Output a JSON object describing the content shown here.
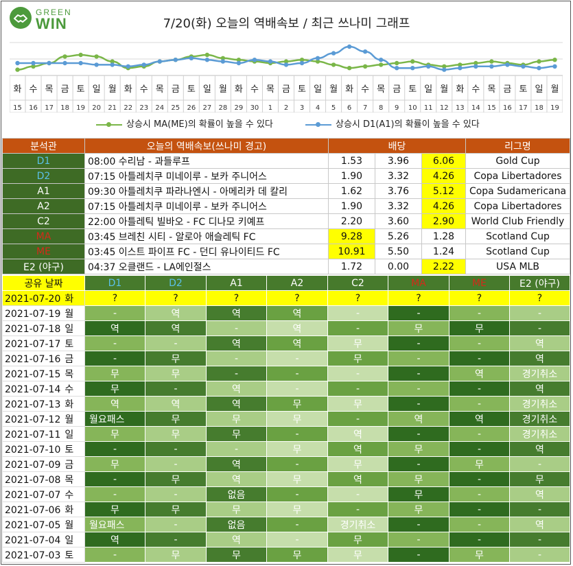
{
  "logo": {
    "line1": "GREEN",
    "line2": "WIN"
  },
  "title": "7/20(화) 오늘의 역배속보 / 최근 쓰나미 그래프",
  "colors": {
    "green_series": "#7ab648",
    "blue_series": "#5b9bd5",
    "header_orange": "#c4520f",
    "label_green": "#3e6b25",
    "highlight": "#ffff00"
  },
  "chart_data": {
    "type": "line",
    "x_days": [
      "화",
      "수",
      "목",
      "금",
      "토",
      "일",
      "월",
      "화",
      "수",
      "목",
      "금",
      "토",
      "일",
      "월",
      "화",
      "수",
      "목",
      "금",
      "토",
      "일",
      "월",
      "화",
      "수",
      "목",
      "금",
      "토",
      "일",
      "월",
      "화",
      "수",
      "목",
      "금",
      "토",
      "일",
      "월"
    ],
    "x_dates": [
      "15",
      "16",
      "17",
      "18",
      "19",
      "20",
      "21",
      "22",
      "23",
      "24",
      "25",
      "26",
      "27",
      "28",
      "29",
      "30",
      "1",
      "2",
      "3",
      "4",
      "5",
      "6",
      "7",
      "8",
      "9",
      "10",
      "11",
      "12",
      "13",
      "14",
      "15",
      "16",
      "17",
      "18",
      "19"
    ],
    "series": [
      {
        "name": "상승시  MA(ME)의 확률이 높을 수 있다",
        "color": "#7ab648",
        "values": [
          -8,
          -4,
          0,
          8,
          10,
          8,
          2,
          -6,
          -4,
          2,
          4,
          8,
          10,
          6,
          4,
          2,
          0,
          2,
          4,
          2,
          -2,
          -6,
          -4,
          -2,
          0,
          2,
          -2,
          -4,
          -2,
          0,
          2,
          0,
          -2,
          2,
          4
        ]
      },
      {
        "name": "상승시  D1(A1)의 확률이 높을 수 있다",
        "color": "#5b9bd5",
        "values": [
          0,
          0,
          0,
          0,
          0,
          -2,
          -2,
          -4,
          -2,
          2,
          4,
          6,
          4,
          2,
          0,
          4,
          2,
          -2,
          0,
          6,
          12,
          20,
          14,
          4,
          -6,
          -6,
          -4,
          -8,
          -6,
          -4,
          -4,
          -2,
          -4,
          -6,
          -4
        ]
      }
    ],
    "ylim": [
      -15,
      25
    ]
  },
  "top_table": {
    "headers": [
      "분석관",
      "오늘의 역배속보(쓰나미 경고)",
      "배당",
      "리그명"
    ],
    "rows": [
      {
        "label": "D1",
        "match": "08:00 수리남 - 과들루프",
        "o1": "1.53",
        "o2": "3.96",
        "o3": "6.06",
        "league": "Gold Cup"
      },
      {
        "label": "D2",
        "match": "07:15 아틀레치쿠 미네이루 - 보카 주니어스",
        "o1": "1.90",
        "o2": "3.32",
        "o3": "4.26",
        "league": "Copa Libertadores"
      },
      {
        "label": "A1",
        "match": "09:30 아틀레치쿠 파라나엔시 - 아메리카 데 칼리",
        "o1": "1.62",
        "o2": "3.76",
        "o3": "5.12",
        "league": "Copa Sudamericana"
      },
      {
        "label": "A2",
        "match": "07:15 아틀레치쿠 미네이루 - 보카 주니어스",
        "o1": "1.90",
        "o2": "3.32",
        "o3": "4.26",
        "league": "Copa Libertadores"
      },
      {
        "label": "C2",
        "match": "22:00 아틀레틱 빌바오 - FC 디나모 키예프",
        "o1": "2.20",
        "o2": "3.60",
        "o3": "2.90",
        "league": "World Club Friendly"
      },
      {
        "label": "MA",
        "match": "03:45 브레친 시티 - 알로아 애슬레틱 FC",
        "o1": "9.28",
        "o2": "5.26",
        "o3": "1.28",
        "league": "Scotland Cup"
      },
      {
        "label": "ME",
        "match": "03:45 이스트 파이프 FC - 던디 유나이티드 FC",
        "o1": "10.91",
        "o2": "5.50",
        "o3": "1.24",
        "league": "Scotland Cup"
      },
      {
        "label": "E2 (야구)",
        "match": "04:37 오클랜드 - LA에인절스",
        "o1": "1.72",
        "o2": "0.00",
        "o3": "2.22",
        "league": "USA MLB"
      }
    ]
  },
  "grid": {
    "headers": [
      "공유 날짜",
      "D1",
      "D2",
      "A1",
      "A2",
      "C2",
      "MA",
      "ME",
      "E2 (야구)"
    ],
    "rows": [
      {
        "date": "2021-07-20",
        "day": "화",
        "cells": [
          "?",
          "?",
          "?",
          "?",
          "?",
          "?",
          "?",
          "?"
        ]
      },
      {
        "date": "2021-07-19",
        "day": "월",
        "cells": [
          "-",
          "역",
          "역",
          "역",
          "-",
          "-",
          "-",
          "-"
        ]
      },
      {
        "date": "2021-07-18",
        "day": "일",
        "cells": [
          "역",
          "역",
          "-",
          "역",
          "-",
          "무",
          "무",
          "-"
        ]
      },
      {
        "date": "2021-07-17",
        "day": "토",
        "cells": [
          "-",
          "-",
          "역",
          "역",
          "무",
          "-",
          "-",
          "역"
        ]
      },
      {
        "date": "2021-07-16",
        "day": "금",
        "cells": [
          "-",
          "무",
          "-",
          "-",
          "무",
          "-",
          "-",
          "역"
        ]
      },
      {
        "date": "2021-07-15",
        "day": "목",
        "cells": [
          "무",
          "무",
          "-",
          "-",
          "-",
          "-",
          "역",
          "경기취소"
        ]
      },
      {
        "date": "2021-07-14",
        "day": "수",
        "cells": [
          "무",
          "-",
          "역",
          "-",
          "-",
          "-",
          "-",
          "역"
        ]
      },
      {
        "date": "2021-07-13",
        "day": "화",
        "cells": [
          "역",
          "역",
          "역",
          "무",
          "무",
          "-",
          "-",
          "경기취소"
        ]
      },
      {
        "date": "2021-07-12",
        "day": "월",
        "cells": [
          "월요패스",
          "무",
          "무",
          "무",
          "-",
          "역",
          "역",
          "경기취소"
        ]
      },
      {
        "date": "2021-07-11",
        "day": "일",
        "cells": [
          "무",
          "무",
          "무",
          "-",
          "역",
          "-",
          "-",
          "경기취소"
        ]
      },
      {
        "date": "2021-07-10",
        "day": "토",
        "cells": [
          "-",
          "-",
          "-",
          "무",
          "역",
          "무",
          "-",
          "역"
        ]
      },
      {
        "date": "2021-07-09",
        "day": "금",
        "cells": [
          "무",
          "-",
          "역",
          "-",
          "무",
          "-",
          "무",
          "-"
        ]
      },
      {
        "date": "2021-07-08",
        "day": "목",
        "cells": [
          "-",
          "무",
          "역",
          "무",
          "역",
          "무",
          "-",
          "무"
        ]
      },
      {
        "date": "2021-07-07",
        "day": "수",
        "cells": [
          "-",
          "-",
          "없음",
          "-",
          "-",
          "무",
          "-",
          "역"
        ]
      },
      {
        "date": "2021-07-06",
        "day": "화",
        "cells": [
          "무",
          "무",
          "무",
          "무",
          "-",
          "무",
          "-",
          "-"
        ]
      },
      {
        "date": "2021-07-05",
        "day": "월",
        "cells": [
          "월요패스",
          "-",
          "없음",
          "-",
          "경기취소",
          "-",
          "-",
          "역"
        ]
      },
      {
        "date": "2021-07-04",
        "day": "일",
        "cells": [
          "역",
          "-",
          "역",
          "-",
          "무",
          "-",
          "-",
          "-"
        ]
      },
      {
        "date": "2021-07-03",
        "day": "토",
        "cells": [
          "-",
          "무",
          "무",
          "무",
          "무",
          "-",
          "무",
          "-"
        ]
      }
    ]
  }
}
